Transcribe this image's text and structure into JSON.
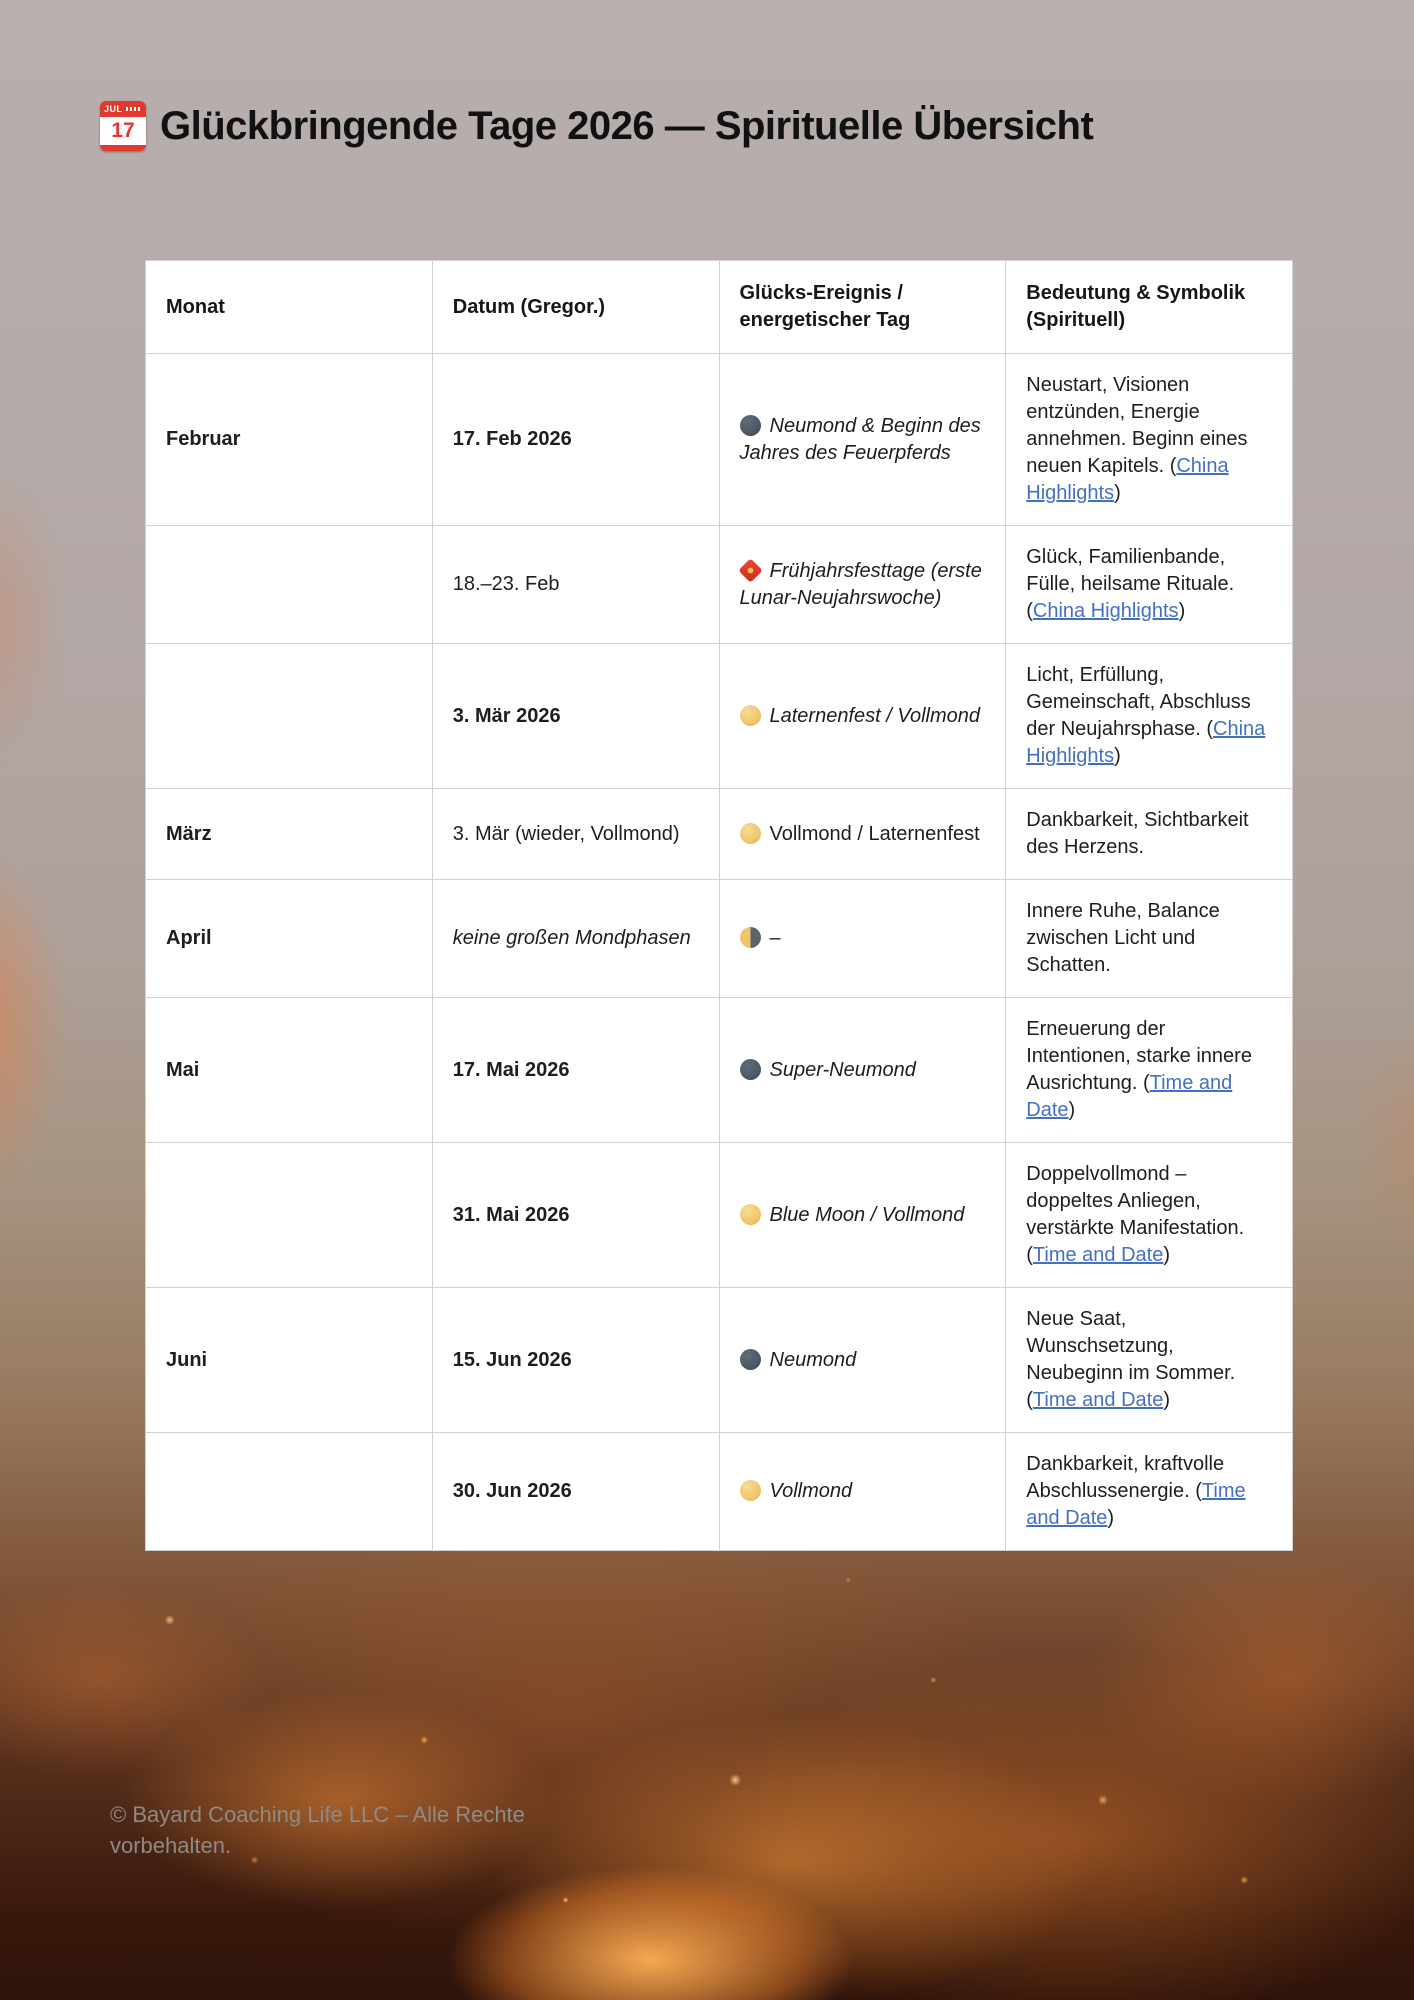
{
  "title": {
    "text": "Glückbringende Tage 2026 — Spirituelle Übersicht",
    "calendar_month": "JUL",
    "calendar_day": "17"
  },
  "table": {
    "headers": [
      "Monat",
      "Datum (Gregor.)",
      "Glücks-Ereignis / energetischer Tag",
      "Bedeutung & Symbolik (Spirituell)"
    ],
    "rows": [
      {
        "month": "Februar",
        "date": "17. Feb 2026",
        "date_style": "bold",
        "event_icon": "new-moon",
        "event_text": "Neumond & Beginn des Jahres des Feuerpferds",
        "event_style": "italic",
        "meaning_prefix": "Neustart, Visionen entzünden, Energie annehmen. Beginn eines neuen Kapitels. (",
        "link_label": "China Highlights",
        "meaning_suffix": ")"
      },
      {
        "month": "",
        "date": "18.–23. Feb",
        "date_style": "regular",
        "event_icon": "red-envelope",
        "event_text": "Frühjahrsfesttage (erste Lunar-Neujahrswoche)",
        "event_style": "italic",
        "meaning_prefix": "Glück, Familienbande, Fülle, heilsame Rituale. (",
        "link_label": "China Highlights",
        "meaning_suffix": ")"
      },
      {
        "month": "",
        "date": "3. Mär 2026",
        "date_style": "bold",
        "event_icon": "full-moon",
        "event_text": "Laternenfest / Vollmond",
        "event_style": "italic",
        "meaning_prefix": "Licht, Erfüllung, Gemeinschaft, Abschluss der Neujahrsphase. (",
        "link_label": "China Highlights",
        "meaning_suffix": ")"
      },
      {
        "month": "März",
        "date": "3. Mär (wieder, Vollmond)",
        "date_style": "regular",
        "event_icon": "full-moon",
        "event_text": "Vollmond / Laternenfest",
        "event_style": "regular",
        "meaning_prefix": "Dankbarkeit, Sichtbarkeit des Herzens.",
        "link_label": "",
        "meaning_suffix": ""
      },
      {
        "month": "April",
        "date": "keine großen Mondphasen",
        "date_style": "italic",
        "event_icon": "half-moon",
        "event_text": "–",
        "event_style": "regular",
        "meaning_prefix": "Innere Ruhe, Balance zwischen Licht und Schatten.",
        "link_label": "",
        "meaning_suffix": ""
      },
      {
        "month": "Mai",
        "date": "17. Mai 2026",
        "date_style": "bold",
        "event_icon": "new-moon",
        "event_text": "Super-Neumond",
        "event_style": "italic",
        "meaning_prefix": "Erneuerung der Intentionen, starke innere Ausrichtung. (",
        "link_label": "Time and Date",
        "meaning_suffix": ")"
      },
      {
        "month": "",
        "date": "31. Mai 2026",
        "date_style": "bold",
        "event_icon": "full-moon",
        "event_text": "Blue Moon / Vollmond",
        "event_style": "italic",
        "meaning_prefix": "Doppelvollmond – doppeltes Anliegen, verstärkte Manifestation. (",
        "link_label": "Time and Date",
        "meaning_suffix": ")"
      },
      {
        "month": "Juni",
        "date": "15. Jun 2026",
        "date_style": "bold",
        "event_icon": "new-moon",
        "event_text": "Neumond",
        "event_style": "italic",
        "meaning_prefix": "Neue Saat, Wunschsetzung, Neubeginn im Sommer. (",
        "link_label": "Time and Date",
        "meaning_suffix": ")"
      },
      {
        "month": "",
        "date": "30. Jun 2026",
        "date_style": "bold",
        "event_icon": "full-moon",
        "event_text": "Vollmond",
        "event_style": "italic",
        "meaning_prefix": "Dankbarkeit, kraftvolle Abschlussenergie. (",
        "link_label": "Time and Date",
        "meaning_suffix": ")"
      }
    ]
  },
  "footer": {
    "text": "© Bayard Coaching Life LLC – Alle Rechte vorbehalten."
  },
  "colors": {
    "link_blue": "#4470c4",
    "new_moon": "#4c5866",
    "full_moon": "#f0c468",
    "half_moon_dark": "#5a646e",
    "envelope_red": "#c62b20"
  }
}
